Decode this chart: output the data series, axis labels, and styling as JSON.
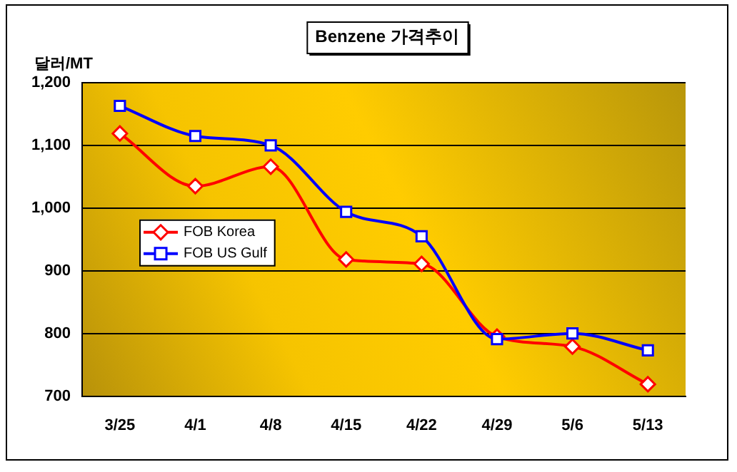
{
  "chart_data": {
    "type": "line",
    "title": "Benzene 가격추이",
    "ylabel": "달러/MT",
    "categories": [
      "3/25",
      "4/1",
      "4/8",
      "4/15",
      "4/22",
      "4/29",
      "5/6",
      "5/13"
    ],
    "series": [
      {
        "name": "FOB Korea",
        "color": "#ff0000",
        "marker": "diamond",
        "values": [
          1119,
          1035,
          1066,
          918,
          911,
          795,
          779,
          719
        ]
      },
      {
        "name": "FOB US Gulf",
        "color": "#0000ff",
        "marker": "square",
        "values": [
          1163,
          1115,
          1100,
          994,
          955,
          791,
          800,
          773
        ]
      }
    ],
    "ylim": [
      700,
      1200
    ],
    "yticks": [
      700,
      {
        "value": 800,
        "label": "800"
      },
      {
        "value": 900,
        "label": "900"
      },
      {
        "value": 1000,
        "label": "1,000"
      },
      {
        "value": 1100,
        "label": "1,100"
      },
      {
        "value": 1200,
        "label": "1,200"
      }
    ],
    "grid": "y",
    "legend": "left"
  }
}
